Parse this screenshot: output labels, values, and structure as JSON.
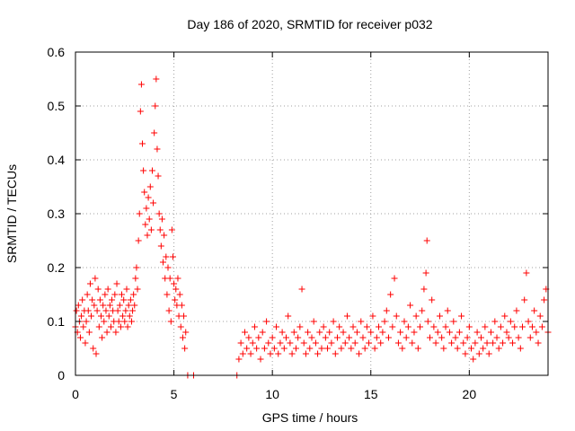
{
  "chart_data": {
    "type": "scatter",
    "title": "Day 186 of 2020, SRMTID for receiver p032",
    "xlabel": "GPS time / hours",
    "ylabel": "SRMTID / TECUs",
    "xlim": [
      0,
      24
    ],
    "ylim": [
      0,
      0.6
    ],
    "xticks": [
      0,
      5,
      10,
      15,
      20
    ],
    "yticks": [
      0,
      0.1,
      0.2,
      0.3,
      0.4,
      0.5,
      0.6
    ],
    "xtick_labels": [
      "0",
      "5",
      "10",
      "15",
      "20"
    ],
    "ytick_labels": [
      "0",
      "0.1",
      "0.2",
      "0.3",
      "0.4",
      "0.5",
      "0.6"
    ],
    "grid": true,
    "marker": "+",
    "color": "#ff0000",
    "series": [
      {
        "name": "SRMTID",
        "points": [
          [
            0.0,
            0.09
          ],
          [
            0.05,
            0.12
          ],
          [
            0.1,
            0.08
          ],
          [
            0.15,
            0.13
          ],
          [
            0.2,
            0.1
          ],
          [
            0.25,
            0.07
          ],
          [
            0.3,
            0.11
          ],
          [
            0.35,
            0.14
          ],
          [
            0.4,
            0.09
          ],
          [
            0.45,
            0.12
          ],
          [
            0.5,
            0.06
          ],
          [
            0.55,
            0.1
          ],
          [
            0.6,
            0.15
          ],
          [
            0.65,
            0.12
          ],
          [
            0.7,
            0.08
          ],
          [
            0.75,
            0.17
          ],
          [
            0.8,
            0.11
          ],
          [
            0.85,
            0.14
          ],
          [
            0.9,
            0.05
          ],
          [
            0.95,
            0.13
          ],
          [
            1.0,
            0.18
          ],
          [
            1.05,
            0.04
          ],
          [
            1.1,
            0.12
          ],
          [
            1.15,
            0.16
          ],
          [
            1.2,
            0.09
          ],
          [
            1.25,
            0.14
          ],
          [
            1.3,
            0.11
          ],
          [
            1.35,
            0.07
          ],
          [
            1.4,
            0.13
          ],
          [
            1.45,
            0.1
          ],
          [
            1.5,
            0.15
          ],
          [
            1.55,
            0.12
          ],
          [
            1.6,
            0.08
          ],
          [
            1.65,
            0.16
          ],
          [
            1.7,
            0.11
          ],
          [
            1.75,
            0.13
          ],
          [
            1.8,
            0.09
          ],
          [
            1.85,
            0.14
          ],
          [
            1.9,
            0.12
          ],
          [
            1.95,
            0.1
          ],
          [
            2.0,
            0.15
          ],
          [
            2.05,
            0.08
          ],
          [
            2.1,
            0.17
          ],
          [
            2.15,
            0.12
          ],
          [
            2.2,
            0.1
          ],
          [
            2.25,
            0.13
          ],
          [
            2.3,
            0.09
          ],
          [
            2.35,
            0.15
          ],
          [
            2.4,
            0.11
          ],
          [
            2.45,
            0.14
          ],
          [
            2.5,
            0.1
          ],
          [
            2.55,
            0.12
          ],
          [
            2.6,
            0.16
          ],
          [
            2.65,
            0.09
          ],
          [
            2.7,
            0.13
          ],
          [
            2.75,
            0.11
          ],
          [
            2.8,
            0.14
          ],
          [
            2.85,
            0.1
          ],
          [
            2.9,
            0.12
          ],
          [
            2.95,
            0.15
          ],
          [
            3.0,
            0.13
          ],
          [
            3.05,
            0.18
          ],
          [
            3.1,
            0.2
          ],
          [
            3.15,
            0.16
          ],
          [
            3.2,
            0.25
          ],
          [
            3.25,
            0.3
          ],
          [
            3.3,
            0.49
          ],
          [
            3.35,
            0.54
          ],
          [
            3.4,
            0.43
          ],
          [
            3.45,
            0.38
          ],
          [
            3.5,
            0.34
          ],
          [
            3.55,
            0.28
          ],
          [
            3.6,
            0.31
          ],
          [
            3.65,
            0.26
          ],
          [
            3.7,
            0.33
          ],
          [
            3.75,
            0.29
          ],
          [
            3.8,
            0.35
          ],
          [
            3.85,
            0.27
          ],
          [
            3.9,
            0.38
          ],
          [
            3.95,
            0.32
          ],
          [
            4.0,
            0.45
          ],
          [
            4.05,
            0.5
          ],
          [
            4.1,
            0.55
          ],
          [
            4.15,
            0.42
          ],
          [
            4.2,
            0.37
          ],
          [
            4.25,
            0.3
          ],
          [
            4.3,
            0.27
          ],
          [
            4.35,
            0.24
          ],
          [
            4.4,
            0.29
          ],
          [
            4.45,
            0.21
          ],
          [
            4.5,
            0.26
          ],
          [
            4.55,
            0.18
          ],
          [
            4.6,
            0.22
          ],
          [
            4.65,
            0.15
          ],
          [
            4.7,
            0.2
          ],
          [
            4.75,
            0.12
          ],
          [
            4.8,
            0.18
          ],
          [
            4.85,
            0.1
          ],
          [
            4.9,
            0.27
          ],
          [
            4.95,
            0.22
          ],
          [
            5.0,
            0.17
          ],
          [
            5.05,
            0.14
          ],
          [
            5.1,
            0.16
          ],
          [
            5.15,
            0.13
          ],
          [
            5.2,
            0.18
          ],
          [
            5.25,
            0.11
          ],
          [
            5.3,
            0.15
          ],
          [
            5.35,
            0.09
          ],
          [
            5.4,
            0.13
          ],
          [
            5.45,
            0.07
          ],
          [
            5.5,
            0.11
          ],
          [
            5.55,
            0.05
          ],
          [
            5.6,
            0.08
          ],
          [
            5.7,
            0.0
          ],
          [
            6.0,
            0.0
          ],
          [
            8.2,
            0.0
          ],
          [
            8.3,
            0.03
          ],
          [
            8.4,
            0.06
          ],
          [
            8.5,
            0.04
          ],
          [
            8.6,
            0.08
          ],
          [
            8.7,
            0.05
          ],
          [
            8.8,
            0.07
          ],
          [
            8.9,
            0.04
          ],
          [
            9.0,
            0.06
          ],
          [
            9.1,
            0.09
          ],
          [
            9.2,
            0.05
          ],
          [
            9.3,
            0.07
          ],
          [
            9.4,
            0.03
          ],
          [
            9.5,
            0.08
          ],
          [
            9.6,
            0.05
          ],
          [
            9.7,
            0.1
          ],
          [
            9.8,
            0.06
          ],
          [
            9.9,
            0.04
          ],
          [
            10.0,
            0.07
          ],
          [
            10.1,
            0.05
          ],
          [
            10.2,
            0.09
          ],
          [
            10.3,
            0.04
          ],
          [
            10.4,
            0.06
          ],
          [
            10.5,
            0.08
          ],
          [
            10.6,
            0.05
          ],
          [
            10.7,
            0.07
          ],
          [
            10.8,
            0.11
          ],
          [
            10.9,
            0.06
          ],
          [
            11.0,
            0.04
          ],
          [
            11.1,
            0.08
          ],
          [
            11.2,
            0.05
          ],
          [
            11.3,
            0.07
          ],
          [
            11.4,
            0.09
          ],
          [
            11.5,
            0.16
          ],
          [
            11.6,
            0.06
          ],
          [
            11.7,
            0.04
          ],
          [
            11.8,
            0.08
          ],
          [
            11.9,
            0.05
          ],
          [
            12.0,
            0.07
          ],
          [
            12.1,
            0.1
          ],
          [
            12.2,
            0.06
          ],
          [
            12.3,
            0.04
          ],
          [
            12.4,
            0.08
          ],
          [
            12.5,
            0.05
          ],
          [
            12.6,
            0.09
          ],
          [
            12.7,
            0.07
          ],
          [
            12.8,
            0.05
          ],
          [
            12.9,
            0.08
          ],
          [
            13.0,
            0.06
          ],
          [
            13.1,
            0.1
          ],
          [
            13.2,
            0.04
          ],
          [
            13.3,
            0.07
          ],
          [
            13.4,
            0.09
          ],
          [
            13.5,
            0.05
          ],
          [
            13.6,
            0.08
          ],
          [
            13.7,
            0.06
          ],
          [
            13.8,
            0.11
          ],
          [
            13.9,
            0.07
          ],
          [
            14.0,
            0.05
          ],
          [
            14.1,
            0.09
          ],
          [
            14.2,
            0.06
          ],
          [
            14.3,
            0.08
          ],
          [
            14.4,
            0.04
          ],
          [
            14.5,
            0.1
          ],
          [
            14.6,
            0.07
          ],
          [
            14.7,
            0.05
          ],
          [
            14.8,
            0.09
          ],
          [
            14.9,
            0.06
          ],
          [
            15.0,
            0.08
          ],
          [
            15.1,
            0.11
          ],
          [
            15.2,
            0.05
          ],
          [
            15.3,
            0.07
          ],
          [
            15.4,
            0.09
          ],
          [
            15.5,
            0.06
          ],
          [
            15.6,
            0.08
          ],
          [
            15.7,
            0.1
          ],
          [
            15.8,
            0.12
          ],
          [
            15.9,
            0.07
          ],
          [
            16.0,
            0.15
          ],
          [
            16.1,
            0.09
          ],
          [
            16.2,
            0.18
          ],
          [
            16.3,
            0.11
          ],
          [
            16.4,
            0.06
          ],
          [
            16.5,
            0.08
          ],
          [
            16.6,
            0.05
          ],
          [
            16.7,
            0.1
          ],
          [
            16.8,
            0.07
          ],
          [
            16.9,
            0.09
          ],
          [
            17.0,
            0.13
          ],
          [
            17.1,
            0.06
          ],
          [
            17.2,
            0.08
          ],
          [
            17.3,
            0.11
          ],
          [
            17.4,
            0.05
          ],
          [
            17.5,
            0.09
          ],
          [
            17.6,
            0.12
          ],
          [
            17.7,
            0.16
          ],
          [
            17.8,
            0.19
          ],
          [
            17.85,
            0.25
          ],
          [
            17.9,
            0.1
          ],
          [
            18.0,
            0.07
          ],
          [
            18.1,
            0.14
          ],
          [
            18.2,
            0.09
          ],
          [
            18.3,
            0.06
          ],
          [
            18.4,
            0.08
          ],
          [
            18.5,
            0.11
          ],
          [
            18.6,
            0.07
          ],
          [
            18.7,
            0.05
          ],
          [
            18.8,
            0.09
          ],
          [
            18.9,
            0.12
          ],
          [
            19.0,
            0.08
          ],
          [
            19.1,
            0.06
          ],
          [
            19.2,
            0.1
          ],
          [
            19.3,
            0.07
          ],
          [
            19.4,
            0.05
          ],
          [
            19.5,
            0.08
          ],
          [
            19.6,
            0.11
          ],
          [
            19.7,
            0.06
          ],
          [
            19.8,
            0.04
          ],
          [
            19.9,
            0.07
          ],
          [
            20.0,
            0.09
          ],
          [
            20.1,
            0.05
          ],
          [
            20.2,
            0.03
          ],
          [
            20.3,
            0.06
          ],
          [
            20.4,
            0.08
          ],
          [
            20.5,
            0.04
          ],
          [
            20.6,
            0.07
          ],
          [
            20.7,
            0.05
          ],
          [
            20.8,
            0.09
          ],
          [
            20.9,
            0.06
          ],
          [
            21.0,
            0.04
          ],
          [
            21.1,
            0.08
          ],
          [
            21.2,
            0.06
          ],
          [
            21.3,
            0.1
          ],
          [
            21.4,
            0.07
          ],
          [
            21.5,
            0.05
          ],
          [
            21.6,
            0.09
          ],
          [
            21.7,
            0.06
          ],
          [
            21.8,
            0.11
          ],
          [
            21.9,
            0.08
          ],
          [
            22.0,
            0.07
          ],
          [
            22.1,
            0.1
          ],
          [
            22.2,
            0.06
          ],
          [
            22.3,
            0.09
          ],
          [
            22.4,
            0.12
          ],
          [
            22.5,
            0.07
          ],
          [
            22.6,
            0.05
          ],
          [
            22.7,
            0.09
          ],
          [
            22.8,
            0.14
          ],
          [
            22.9,
            0.19
          ],
          [
            23.0,
            0.1
          ],
          [
            23.1,
            0.07
          ],
          [
            23.2,
            0.09
          ],
          [
            23.3,
            0.12
          ],
          [
            23.4,
            0.08
          ],
          [
            23.5,
            0.06
          ],
          [
            23.6,
            0.11
          ],
          [
            23.7,
            0.09
          ],
          [
            23.8,
            0.14
          ],
          [
            23.9,
            0.16
          ],
          [
            24.0,
            0.08
          ]
        ]
      }
    ]
  }
}
